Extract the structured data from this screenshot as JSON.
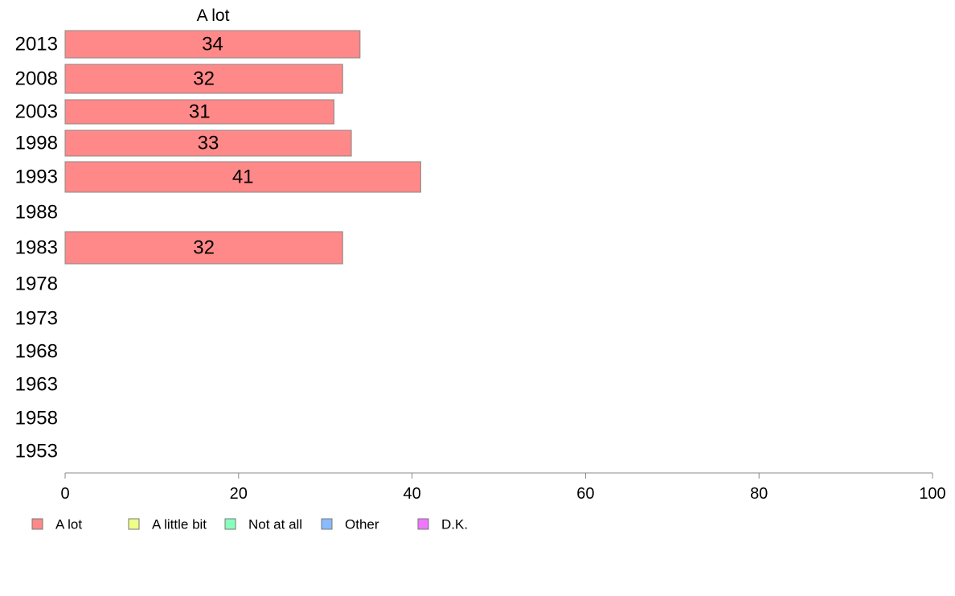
{
  "chart_data": {
    "type": "bar",
    "orientation": "horizontal",
    "column_header": "A lot",
    "categories": [
      "2013",
      "2008",
      "2003",
      "1998",
      "1993",
      "1988",
      "1983",
      "1978",
      "1973",
      "1968",
      "1963",
      "1958",
      "1953"
    ],
    "series": [
      {
        "name": "A lot",
        "color": "#ff8888",
        "values": [
          34,
          32,
          31,
          33,
          41,
          null,
          32,
          null,
          null,
          null,
          null,
          null,
          null
        ],
        "labels": [
          "34",
          "32",
          "31",
          "33",
          "41",
          null,
          "32",
          null,
          null,
          null,
          null,
          null,
          null
        ]
      }
    ],
    "xlim": [
      0,
      100
    ],
    "x_ticks": [
      "0",
      "20",
      "40",
      "60",
      "80",
      "100"
    ],
    "legend": {
      "placement": "bottom-left",
      "entries": [
        {
          "label": "A lot",
          "color": "#ff8888"
        },
        {
          "label": "A little bit",
          "color": "#eeff88"
        },
        {
          "label": "Not at all",
          "color": "#88ffbb"
        },
        {
          "label": "Other",
          "color": "#88bbff"
        },
        {
          "label": "D.K.",
          "color": "#ee77ff"
        }
      ]
    },
    "grid": false,
    "bar_edge_color": "#888888",
    "axis_color": "#888888"
  }
}
